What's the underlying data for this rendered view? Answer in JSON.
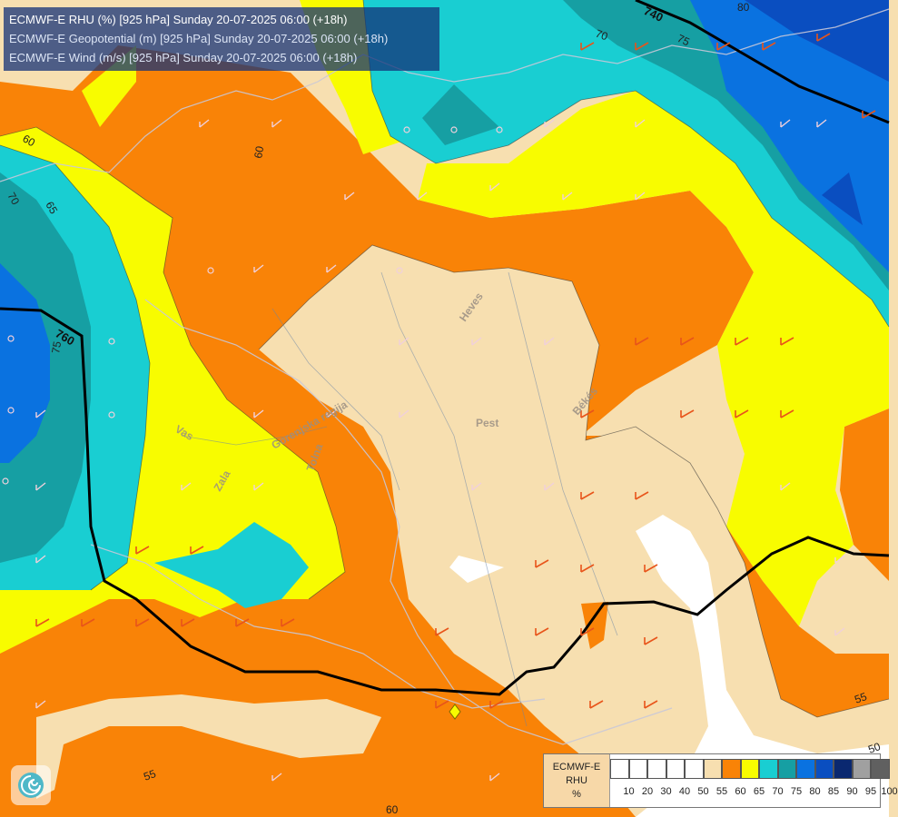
{
  "title": {
    "line1": "ECMWF-E RHU (%) [925 hPa] Sunday 20-07-2025 06:00 (+18h)",
    "line2": "ECMWF-E Geopotential (m) [925 hPa] Sunday 20-07-2025 06:00 (+18h)",
    "line3": "ECMWF-E Wind (m/s) [925 hPa] Sunday 20-07-2025 06:00 (+18h)"
  },
  "legend": {
    "line1": "ECMWF-E",
    "line2": "RHU",
    "line3": "%",
    "ticks": [
      "10",
      "20",
      "30",
      "40",
      "50",
      "55",
      "60",
      "65",
      "70",
      "75",
      "80",
      "85",
      "90",
      "95",
      "100"
    ],
    "colors": [
      "#ffffff",
      "#ffffff",
      "#ffffff",
      "#ffffff",
      "#ffffff",
      "#f7dfb0",
      "#f98307",
      "#f8fc00",
      "#19ced2",
      "#169fa3",
      "#0a72e0",
      "#0a4ec0",
      "#0a2870",
      "#a0a0a0",
      "#606060"
    ]
  },
  "map_labels": {
    "contour_760": "760",
    "contour_740": "740",
    "rhu_80": "80",
    "rhu_75_top": "75",
    "rhu_75_left": "75",
    "rhu_70_top": "70",
    "rhu_70_left": "70",
    "rhu_65": "65",
    "rhu_60_left": "60",
    "rhu_60_top": "60",
    "rhu_60_bottom": "60",
    "rhu_55_right": "55",
    "rhu_55_bottom": "55",
    "rhu_50": "50",
    "place_pest": "Pest",
    "place_heves": "Heves",
    "place_bekes": "Békés",
    "place_vas": "Vas",
    "place_zala": "Zala",
    "place_gorenjska": "Gorenjska regija",
    "place_tolna": "Tolna"
  }
}
